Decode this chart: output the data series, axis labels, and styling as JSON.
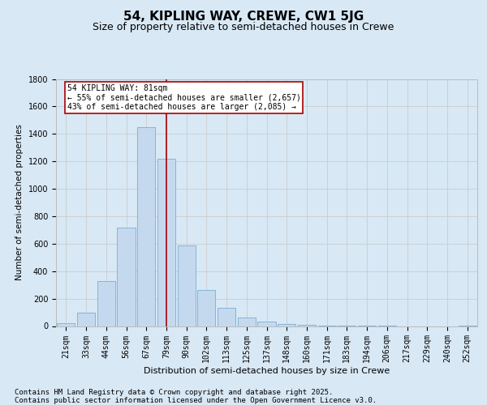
{
  "title": "54, KIPLING WAY, CREWE, CW1 5JG",
  "subtitle": "Size of property relative to semi-detached houses in Crewe",
  "xlabel": "Distribution of semi-detached houses by size in Crewe",
  "ylabel": "Number of semi-detached properties",
  "categories": [
    "21sqm",
    "33sqm",
    "44sqm",
    "56sqm",
    "67sqm",
    "79sqm",
    "90sqm",
    "102sqm",
    "113sqm",
    "125sqm",
    "137sqm",
    "148sqm",
    "160sqm",
    "171sqm",
    "183sqm",
    "194sqm",
    "206sqm",
    "217sqm",
    "229sqm",
    "240sqm",
    "252sqm"
  ],
  "values": [
    20,
    100,
    330,
    720,
    1450,
    1220,
    590,
    260,
    130,
    60,
    30,
    15,
    10,
    5,
    2,
    1,
    1,
    0,
    0,
    0,
    2
  ],
  "bar_color": "#c5d9ee",
  "bar_edge_color": "#7aadd4",
  "vline_x_idx": 5,
  "vline_color": "#aa0000",
  "annotation_line1": "54 KIPLING WAY: 81sqm",
  "annotation_line2": "← 55% of semi-detached houses are smaller (2,657)",
  "annotation_line3": "43% of semi-detached houses are larger (2,085) →",
  "annotation_box_facecolor": "#ffffff",
  "annotation_box_edgecolor": "#aa0000",
  "ylim_max": 1800,
  "yticks": [
    0,
    200,
    400,
    600,
    800,
    1000,
    1200,
    1400,
    1600,
    1800
  ],
  "grid_color": "#cccccc",
  "background_color": "#d8e8f5",
  "footer_text1": "Contains HM Land Registry data © Crown copyright and database right 2025.",
  "footer_text2": "Contains public sector information licensed under the Open Government Licence v3.0.",
  "title_fontsize": 11,
  "subtitle_fontsize": 9,
  "footer_fontsize": 6.5,
  "ylabel_fontsize": 7.5,
  "xlabel_fontsize": 8,
  "tick_fontsize": 7,
  "annotation_fontsize": 7
}
